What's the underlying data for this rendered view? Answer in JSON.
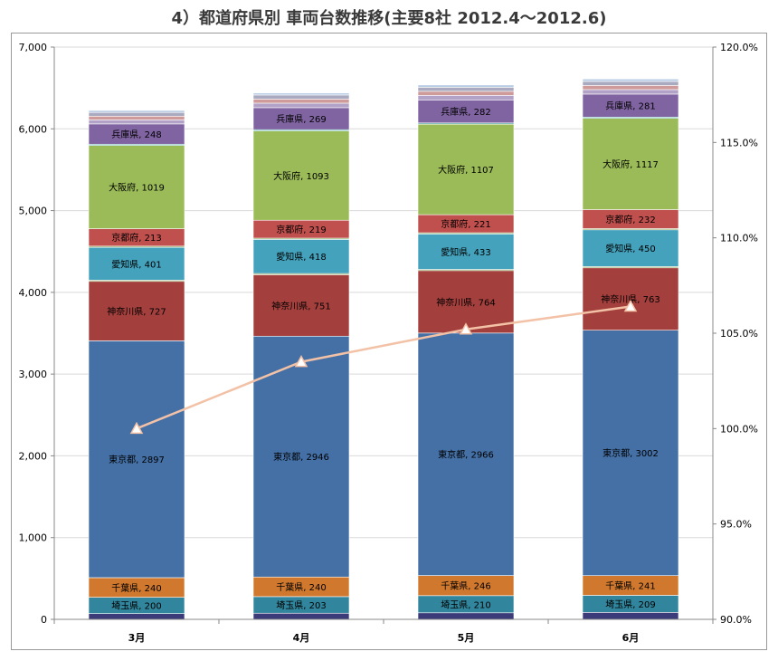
{
  "title": "4）都道府県別 車両台数推移(主要8社 2012.4～2012.6)",
  "colors": {
    "埼玉県": "#31859c",
    "千葉県": "#d0792e",
    "東京都": "#4470a6",
    "神奈川県": "#a33f3c",
    "愛知県": "#45a2bd",
    "京都府": "#c0504d",
    "大阪府": "#9bbb59",
    "兵庫県": "#8064a2",
    "bottom": "#3b3b7a",
    "line": "#f2c1a6"
  },
  "chart_data": {
    "type": "bar",
    "stacked": true,
    "title": "4）都道府県別 車両台数推移(主要8社 2012.4～2012.6)",
    "categories": [
      "3月",
      "4月",
      "5月",
      "6月"
    ],
    "y_axis": {
      "min": 0,
      "max": 7000,
      "step": 1000,
      "ticks": [
        "0",
        "1,000",
        "2,000",
        "3,000",
        "4,000",
        "5,000",
        "6,000",
        "7,000"
      ]
    },
    "y2_axis": {
      "min": 90,
      "max": 120,
      "step": 5,
      "ticks": [
        "90.0%",
        "95.0%",
        "100.0%",
        "105.0%",
        "110.0%",
        "115.0%",
        "120.0%"
      ]
    },
    "series": [
      {
        "name": "",
        "values": [
          70,
          75,
          80,
          85
        ],
        "label": false
      },
      {
        "name": "埼玉県",
        "values": [
          200,
          203,
          210,
          209
        ],
        "label": true
      },
      {
        "name": "千葉県",
        "values": [
          240,
          240,
          246,
          241
        ],
        "label": true
      },
      {
        "name": "東京都",
        "values": [
          2897,
          2946,
          2966,
          3002
        ],
        "label": true
      },
      {
        "name": "神奈川県",
        "values": [
          727,
          751,
          764,
          763
        ],
        "label": true
      },
      {
        "name": "",
        "values": [
          15,
          15,
          15,
          15
        ],
        "label": false,
        "color": "#8aa050"
      },
      {
        "name": "愛知県",
        "values": [
          401,
          418,
          433,
          450
        ],
        "label": true
      },
      {
        "name": "",
        "values": [
          15,
          15,
          15,
          15
        ],
        "label": false,
        "color": "#8ba85a"
      },
      {
        "name": "京都府",
        "values": [
          213,
          219,
          221,
          232
        ],
        "label": true
      },
      {
        "name": "大阪府",
        "values": [
          1019,
          1093,
          1107,
          1117
        ],
        "label": true
      },
      {
        "name": "",
        "values": [
          15,
          15,
          15,
          15
        ],
        "label": false,
        "color": "#4ba6a0"
      },
      {
        "name": "兵庫県",
        "values": [
          248,
          269,
          282,
          281
        ],
        "label": true
      },
      {
        "name": "",
        "values": [
          50,
          55,
          55,
          55
        ],
        "label": false,
        "color": "#b3a2c7"
      },
      {
        "name": "",
        "values": [
          45,
          50,
          50,
          50
        ],
        "label": false,
        "color": "#cf9a9a"
      },
      {
        "name": "",
        "values": [
          45,
          50,
          50,
          50
        ],
        "label": false,
        "color": "#a9a9bf"
      },
      {
        "name": "",
        "values": [
          25,
          25,
          28,
          30
        ],
        "label": false,
        "color": "#b9cde5"
      }
    ],
    "line_series": {
      "values": [
        100.0,
        103.5,
        105.2,
        106.4
      ],
      "axis": "y2",
      "marker": "triangle"
    }
  }
}
